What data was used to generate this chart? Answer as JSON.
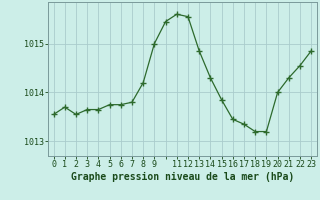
{
  "x": [
    0,
    1,
    2,
    3,
    4,
    5,
    6,
    7,
    8,
    9,
    10,
    11,
    12,
    13,
    14,
    15,
    16,
    17,
    18,
    19,
    20,
    21,
    22,
    23
  ],
  "y": [
    1013.55,
    1013.7,
    1013.55,
    1013.65,
    1013.65,
    1013.75,
    1013.75,
    1013.8,
    1014.2,
    1015.0,
    1015.45,
    1015.6,
    1015.55,
    1014.85,
    1014.3,
    1013.85,
    1013.45,
    1013.35,
    1013.2,
    1013.2,
    1014.0,
    1014.3,
    1014.55,
    1014.85
  ],
  "line_color": "#2d6a2d",
  "marker": "+",
  "marker_size": 4,
  "marker_color": "#2d6a2d",
  "bg_color": "#cceee8",
  "grid_color": "#aacccc",
  "xlabel": "Graphe pression niveau de la mer (hPa)",
  "xlabel_fontsize": 7,
  "xlabel_color": "#1a4a1a",
  "tick_color": "#1a4a1a",
  "tick_fontsize": 6,
  "yticks": [
    1013,
    1014,
    1015
  ],
  "ylim": [
    1012.7,
    1015.85
  ],
  "xlim": [
    -0.5,
    23.5
  ],
  "xtick_labels": [
    "0",
    "1",
    "2",
    "3",
    "4",
    "5",
    "6",
    "7",
    "8",
    "9",
    "",
    "11",
    "12",
    "13",
    "14",
    "15",
    "16",
    "17",
    "18",
    "19",
    "20",
    "21",
    "22",
    "23"
  ]
}
